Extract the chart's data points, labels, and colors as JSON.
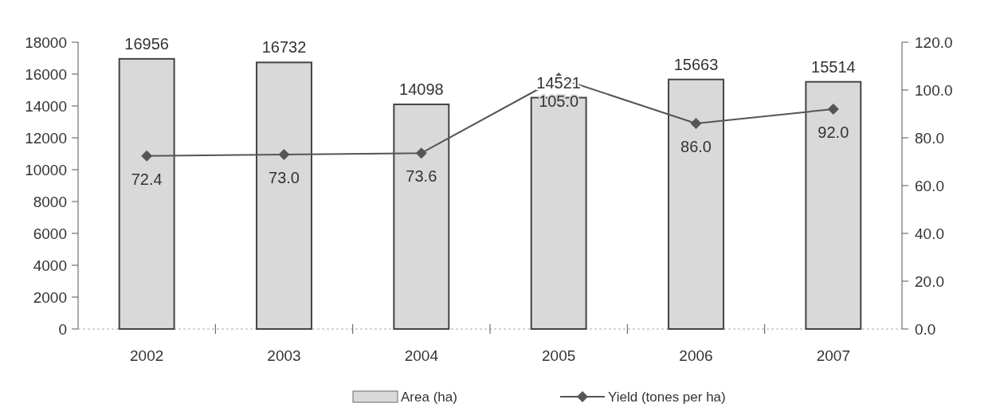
{
  "chart_data": {
    "type": "bar",
    "categories": [
      "2002",
      "2003",
      "2004",
      "2005",
      "2006",
      "2007"
    ],
    "series": [
      {
        "name": "Area (ha)",
        "color": "#d9d9d9",
        "values": [
          16956,
          16732,
          14098,
          14521,
          15663,
          15514
        ]
      },
      {
        "name": "Yield (tones per ha)",
        "type": "line",
        "axis": "y2",
        "color": "#555555",
        "marker": "diamond",
        "values": [
          72.4,
          73.0,
          73.6,
          105.0,
          86.0,
          92.0
        ],
        "value_labels": [
          "72.4",
          "73.0",
          "73.6",
          "105.0",
          "86.0",
          "92.0"
        ]
      }
    ],
    "ylim": [
      0,
      18000
    ],
    "yticks": [
      0,
      2000,
      4000,
      6000,
      8000,
      10000,
      12000,
      14000,
      16000,
      18000
    ],
    "y2lim": [
      0,
      120
    ],
    "y2ticks": [
      {
        "value": 0,
        "label": "0.0"
      },
      {
        "value": 20,
        "label": "20.0"
      },
      {
        "value": 40,
        "label": "40.0"
      },
      {
        "value": 60,
        "label": "60.0"
      },
      {
        "value": 80,
        "label": "80.0"
      },
      {
        "value": 100,
        "label": "100.0"
      },
      {
        "value": 120,
        "label": "120.0"
      }
    ],
    "data_labels": true,
    "legend": "bottom"
  }
}
